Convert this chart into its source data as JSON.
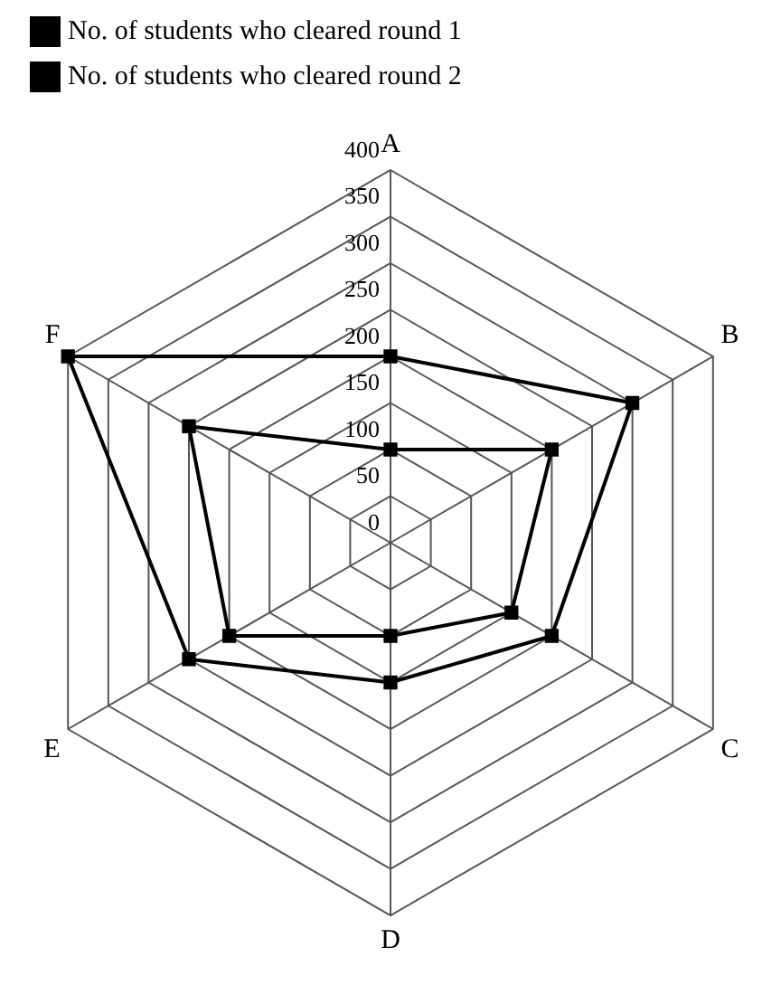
{
  "chart_data": {
    "type": "radar",
    "categories": [
      "A",
      "B",
      "C",
      "D",
      "E",
      "F"
    ],
    "series": [
      {
        "name": "No. of students who cleared round 1",
        "color": "#000000",
        "values": [
          200,
          300,
          200,
          150,
          250,
          400
        ]
      },
      {
        "name": "No. of students who cleared round 2",
        "color": "#000000",
        "values": [
          100,
          200,
          150,
          100,
          200,
          250
        ]
      }
    ],
    "ylim": [
      0,
      400
    ],
    "yticks": [
      0,
      50,
      100,
      150,
      200,
      250,
      300,
      350,
      400
    ],
    "grid": true,
    "legend": "top",
    "marker": "square",
    "line_style": "solid"
  }
}
